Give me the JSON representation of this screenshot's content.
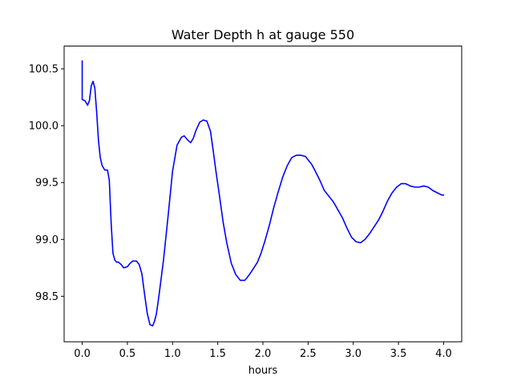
{
  "chart_data": {
    "type": "line",
    "title": "Water Depth h at gauge 550",
    "xlabel": "hours",
    "ylabel": "",
    "xlim": [
      -0.2,
      4.2
    ],
    "ylim": [
      98.1,
      100.7
    ],
    "xticks": [
      0.0,
      0.5,
      1.0,
      1.5,
      2.0,
      2.5,
      3.0,
      3.5,
      4.0
    ],
    "xtick_labels": [
      "0.0",
      "0.5",
      "1.0",
      "1.5",
      "2.0",
      "2.5",
      "3.0",
      "3.5",
      "4.0"
    ],
    "yticks": [
      98.5,
      99.0,
      99.5,
      100.0,
      100.5
    ],
    "ytick_labels": [
      "98.5",
      "99.0",
      "99.5",
      "100.0",
      "100.5"
    ],
    "grid": false,
    "legend": false,
    "series": [
      {
        "color": "#0000ff",
        "x": [
          0.0,
          0.0,
          0.0,
          0.03,
          0.06,
          0.08,
          0.1,
          0.12,
          0.14,
          0.16,
          0.18,
          0.2,
          0.22,
          0.25,
          0.28,
          0.3,
          0.32,
          0.34,
          0.36,
          0.38,
          0.4,
          0.43,
          0.46,
          0.5,
          0.53,
          0.56,
          0.6,
          0.63,
          0.66,
          0.69,
          0.72,
          0.75,
          0.78,
          0.8,
          0.82,
          0.84,
          0.86,
          0.9,
          0.95,
          1.0,
          1.05,
          1.1,
          1.13,
          1.16,
          1.2,
          1.23,
          1.26,
          1.3,
          1.34,
          1.38,
          1.42,
          1.45,
          1.48,
          1.52,
          1.56,
          1.6,
          1.65,
          1.7,
          1.75,
          1.8,
          1.85,
          1.9,
          1.94,
          1.98,
          2.02,
          2.07,
          2.12,
          2.17,
          2.22,
          2.27,
          2.32,
          2.37,
          2.42,
          2.47,
          2.5,
          2.54,
          2.58,
          2.63,
          2.68,
          2.73,
          2.78,
          2.83,
          2.88,
          2.93,
          2.98,
          3.03,
          3.08,
          3.13,
          3.18,
          3.23,
          3.28,
          3.33,
          3.38,
          3.43,
          3.48,
          3.53,
          3.58,
          3.63,
          3.68,
          3.73,
          3.78,
          3.83,
          3.88,
          3.93,
          3.98,
          4.0
        ],
        "y": [
          100.57,
          100.57,
          100.23,
          100.22,
          100.18,
          100.22,
          100.35,
          100.39,
          100.33,
          100.12,
          99.87,
          99.72,
          99.65,
          99.61,
          99.61,
          99.52,
          99.15,
          98.88,
          98.82,
          98.8,
          98.8,
          98.78,
          98.75,
          98.76,
          98.79,
          98.81,
          98.81,
          98.78,
          98.7,
          98.52,
          98.35,
          98.25,
          98.24,
          98.28,
          98.34,
          98.45,
          98.57,
          98.82,
          99.2,
          99.6,
          99.83,
          99.9,
          99.91,
          99.88,
          99.85,
          99.89,
          99.96,
          100.03,
          100.05,
          100.04,
          99.95,
          99.78,
          99.6,
          99.38,
          99.15,
          98.97,
          98.79,
          98.69,
          98.64,
          98.64,
          98.69,
          98.75,
          98.8,
          98.88,
          98.98,
          99.12,
          99.28,
          99.42,
          99.55,
          99.65,
          99.72,
          99.74,
          99.74,
          99.73,
          99.7,
          99.66,
          99.6,
          99.52,
          99.43,
          99.38,
          99.33,
          99.26,
          99.19,
          99.1,
          99.02,
          98.98,
          98.97,
          99.0,
          99.05,
          99.11,
          99.17,
          99.25,
          99.34,
          99.41,
          99.46,
          99.49,
          99.49,
          99.47,
          99.46,
          99.46,
          99.47,
          99.46,
          99.43,
          99.41,
          99.39,
          99.39
        ]
      }
    ]
  }
}
